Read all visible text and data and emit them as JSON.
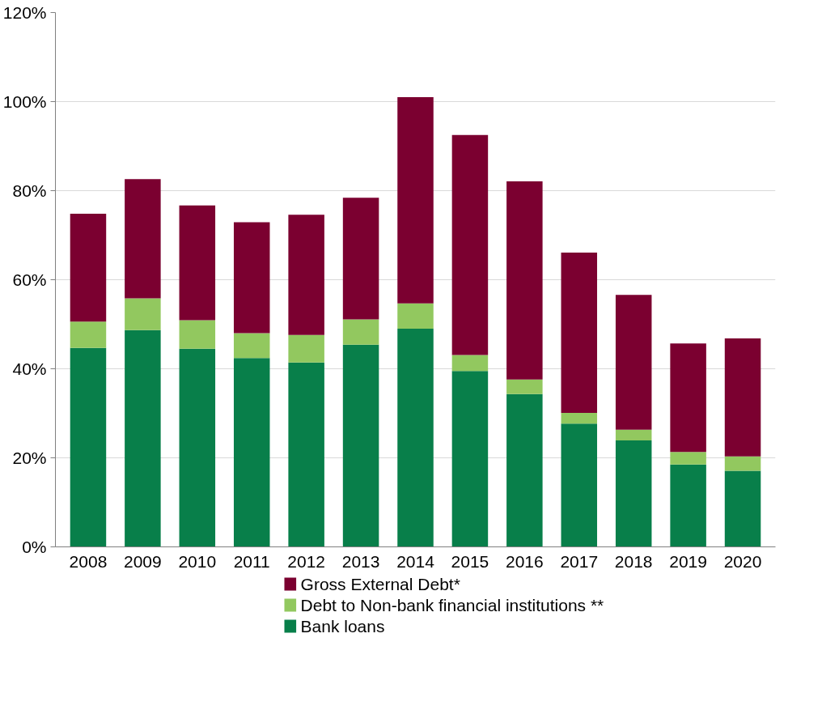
{
  "chart_data": {
    "type": "bar",
    "stacked": true,
    "categories": [
      "2008",
      "2009",
      "2010",
      "2011",
      "2012",
      "2013",
      "2014",
      "2015",
      "2016",
      "2017",
      "2018",
      "2019",
      "2020"
    ],
    "series": [
      {
        "name": "Bank loans",
        "color": "#087f4a",
        "values": [
          44.7,
          48.7,
          44.5,
          42.4,
          41.4,
          45.4,
          49.0,
          39.5,
          34.3,
          27.7,
          23.9,
          18.5,
          17.1
        ]
      },
      {
        "name": "Debt to Non-bank financial institutions **",
        "color": "#92c85f",
        "values": [
          5.9,
          7.1,
          6.4,
          5.6,
          6.2,
          5.7,
          5.7,
          3.6,
          3.3,
          2.4,
          2.4,
          2.8,
          3.2
        ]
      },
      {
        "name": "Gross External Debt*",
        "color": "#7b0030",
        "values": [
          24.2,
          26.8,
          25.8,
          24.9,
          27.0,
          27.3,
          46.3,
          49.4,
          44.5,
          36.0,
          30.3,
          24.4,
          26.5
        ]
      }
    ],
    "ylim": [
      0,
      120
    ],
    "yticks": [
      {
        "value": 0,
        "label": "0%"
      },
      {
        "value": 20,
        "label": "20%"
      },
      {
        "value": 40,
        "label": "40%"
      },
      {
        "value": 60,
        "label": "60%"
      },
      {
        "value": 80,
        "label": "80%"
      },
      {
        "value": 100,
        "label": "100%"
      },
      {
        "value": 120,
        "label": "120%"
      }
    ],
    "grid": "y",
    "legend": "bottom"
  }
}
